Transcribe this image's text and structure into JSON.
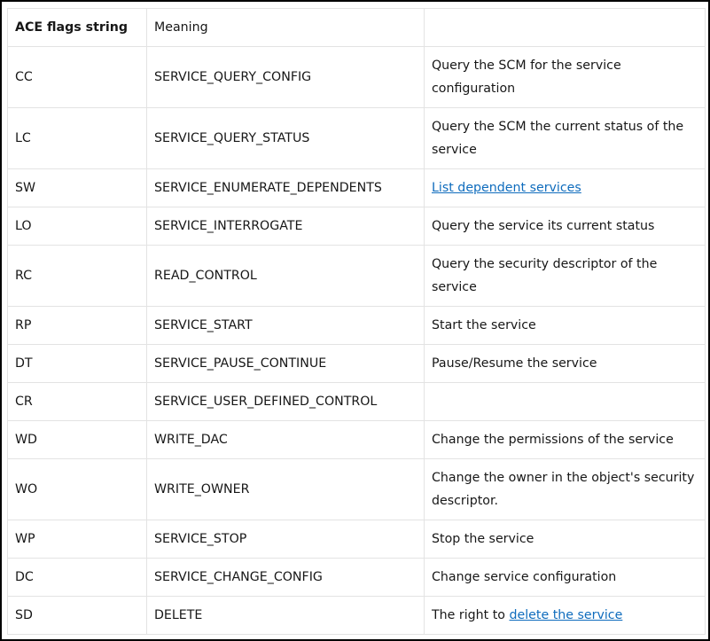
{
  "headers": [
    "ACE flags string",
    "Meaning",
    ""
  ],
  "rows": [
    {
      "flag": "CC",
      "right": "SERVICE_QUERY_CONFIG",
      "desc": "Query the SCM for the service configuration",
      "tall": true
    },
    {
      "flag": "LC",
      "right": "SERVICE_QUERY_STATUS",
      "desc": "Query the SCM the current status of the service",
      "tall": true
    },
    {
      "flag": "SW",
      "right": "SERVICE_ENUMERATE_DEPENDENTS",
      "desc": "",
      "link": "List dependent services"
    },
    {
      "flag": "LO",
      "right": "SERVICE_INTERROGATE",
      "desc": "Query the service its current status"
    },
    {
      "flag": "RC",
      "right": "READ_CONTROL",
      "desc": "Query the security descriptor of the service",
      "tall": true
    },
    {
      "flag": "RP",
      "right": "SERVICE_START",
      "desc": "Start the service"
    },
    {
      "flag": "DT",
      "right": "SERVICE_PAUSE_CONTINUE",
      "desc": "Pause/Resume the service"
    },
    {
      "flag": "CR",
      "right": "SERVICE_USER_DEFINED_CONTROL",
      "desc": ""
    },
    {
      "flag": "WD",
      "right": "WRITE_DAC",
      "desc": "Change the permissions of the service"
    },
    {
      "flag": "WO",
      "right": "WRITE_OWNER",
      "desc": "Change the owner in the object's security descriptor.",
      "tall": true
    },
    {
      "flag": "WP",
      "right": "SERVICE_STOP",
      "desc": "Stop the service"
    },
    {
      "flag": "DC",
      "right": "SERVICE_CHANGE_CONFIG",
      "desc": "Change service configuration"
    },
    {
      "flag": "SD",
      "right": "DELETE",
      "desc": "The right to ",
      "link": "delete the service"
    }
  ],
  "colors": {
    "link": "#0f6cbd",
    "border": "#e3e3e3",
    "text": "#171717"
  }
}
